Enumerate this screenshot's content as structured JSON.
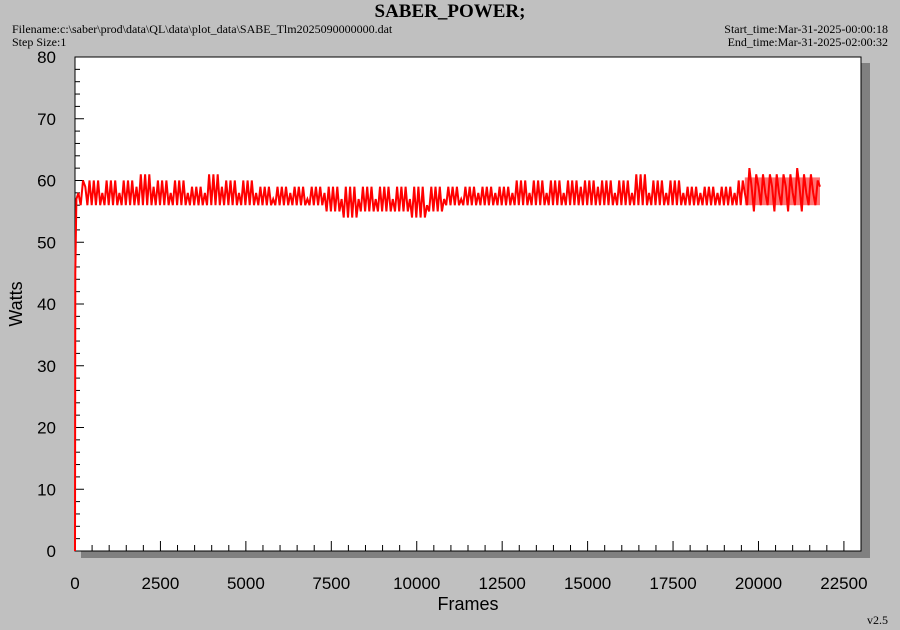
{
  "header": {
    "title": "SABER_POWER;",
    "filename": "Filename:c:\\saber\\prod\\data\\QL\\data\\plot_data\\SABE_Tlm2025090000000.dat",
    "step_size": "Step Size:1",
    "start_time": "Start_time:Mar-31-2025-00:00:18",
    "end_time": "End_time:Mar-31-2025-02:00:32"
  },
  "version": "v2.5",
  "chart_data": {
    "type": "line",
    "xlabel": "Frames",
    "ylabel": "Watts",
    "xlim": [
      0,
      23000
    ],
    "ylim": [
      0,
      80
    ],
    "xticks": [
      0,
      2500,
      5000,
      7500,
      10000,
      12500,
      15000,
      17500,
      20000,
      22500
    ],
    "yticks": [
      0,
      10,
      20,
      30,
      40,
      50,
      60,
      70,
      80
    ],
    "grid": false,
    "legend": "none",
    "series_color": "#ff0000",
    "series": [
      {
        "x": [
          0,
          10,
          40,
          100,
          300,
          800,
          1300,
          1800,
          2300,
          2800,
          3300,
          3800,
          4300,
          4800,
          5300,
          5800,
          6300,
          6800,
          7300,
          7800,
          8300,
          8800,
          9300,
          9800,
          10300,
          10800,
          11300,
          11800,
          12300,
          12800,
          13300,
          13800,
          14300,
          14800,
          15300,
          15800,
          16300,
          16800,
          17300,
          17800,
          18300,
          18800,
          19300,
          19600,
          19800,
          20000,
          20200,
          20400,
          20600,
          20800,
          21000,
          21200,
          21400,
          21600,
          21800
        ],
        "y": [
          0,
          45,
          57,
          58,
          59,
          58,
          58,
          59,
          59,
          58,
          58,
          58,
          59,
          58,
          58,
          57,
          58,
          57,
          58,
          57,
          57,
          57,
          57,
          57,
          56,
          57,
          57,
          58,
          58,
          58,
          58,
          58,
          58,
          59,
          59,
          58,
          58,
          58,
          58,
          58,
          58,
          58,
          58,
          58,
          59,
          59,
          58,
          59,
          58,
          59,
          58,
          59,
          58,
          58,
          59
        ],
        "min": [
          0,
          45,
          55,
          56,
          56,
          56,
          56,
          56,
          56,
          56,
          56,
          56,
          56,
          56,
          56,
          56,
          56,
          56,
          56,
          55,
          54,
          55,
          55,
          55,
          54,
          55,
          56,
          56,
          56,
          56,
          56,
          56,
          56,
          56,
          56,
          56,
          56,
          56,
          56,
          56,
          56,
          56,
          56,
          56,
          56,
          55,
          56,
          56,
          55,
          56,
          55,
          56,
          55,
          56,
          56
        ],
        "max": [
          0,
          45,
          59,
          60,
          60,
          60,
          60,
          60,
          61,
          60,
          60,
          59,
          61,
          60,
          60,
          59,
          59,
          59,
          59,
          59,
          59,
          59,
          59,
          59,
          59,
          59,
          59,
          59,
          59,
          59,
          60,
          60,
          60,
          60,
          60,
          60,
          60,
          61,
          60,
          60,
          59,
          59,
          59,
          60,
          62,
          61,
          61,
          61,
          61,
          61,
          61,
          62,
          61,
          61,
          60
        ]
      }
    ]
  }
}
